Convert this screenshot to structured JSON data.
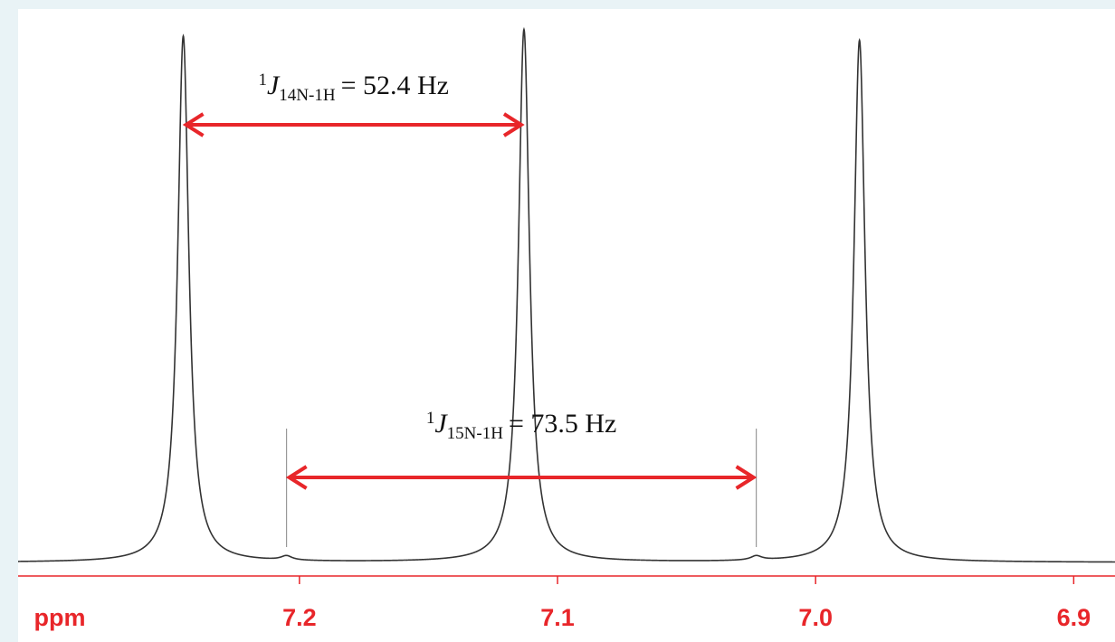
{
  "chart_data": {
    "type": "spectrum",
    "xlabel": "ppm",
    "x": [
      7.245,
      7.205,
      7.113,
      7.023,
      6.983
    ],
    "values": [
      98.3,
      0.8,
      99.5,
      0.8,
      97.5
    ],
    "color": "#333333",
    "axis_color": "#e8262a",
    "annotation_color": "#e8262a",
    "xlim": [
      7.309,
      6.884
    ],
    "ylim": [
      0,
      100
    ],
    "xticks": [
      7.2,
      7.1,
      7.0,
      6.9
    ],
    "xtick_labels": [
      "7.2",
      "7.1",
      "7.0",
      "6.9"
    ],
    "annotations": [
      {
        "sup": "1",
        "symbol": "J",
        "sub": "14N-1H",
        "text": "= 52.4 Hz"
      },
      {
        "sup": "1",
        "symbol": "J",
        "sub": "15N-1H",
        "text": "= 73.5 Hz"
      }
    ]
  }
}
